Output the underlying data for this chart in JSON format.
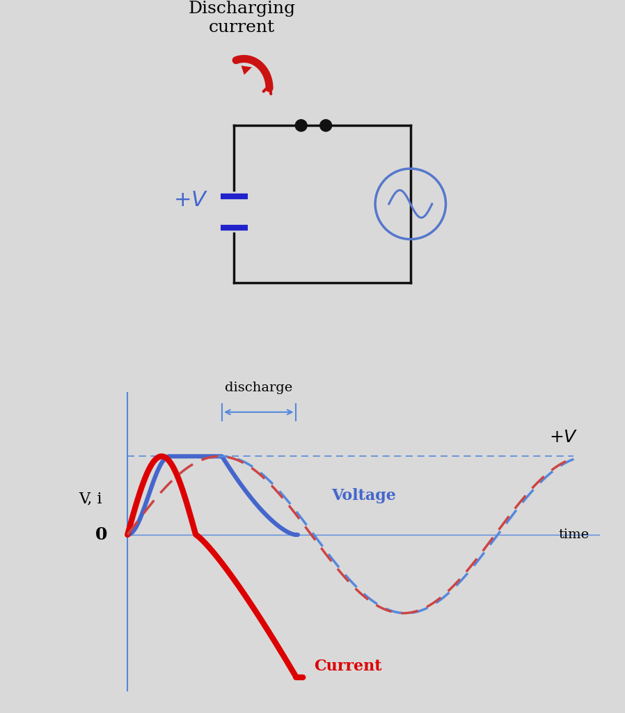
{
  "bg_color": "#d9d9d9",
  "title_text": "Discharging\ncurrent",
  "plus_v_label": "+V",
  "voltage_label": "Voltage",
  "current_label": "Current",
  "discharge_label": "discharge",
  "plus_v_axis_label": "+V",
  "y_axis_label": "V, i",
  "x_axis_label": "time",
  "zero_label": "0",
  "blue_color": "#4466cc",
  "red_color": "#dd0000",
  "dashed_blue": "#5588dd",
  "circuit_line_color": "#111111",
  "cap_color": "#2222cc",
  "ac_circle_color": "#5577cc",
  "arrow_red": "#cc1111"
}
